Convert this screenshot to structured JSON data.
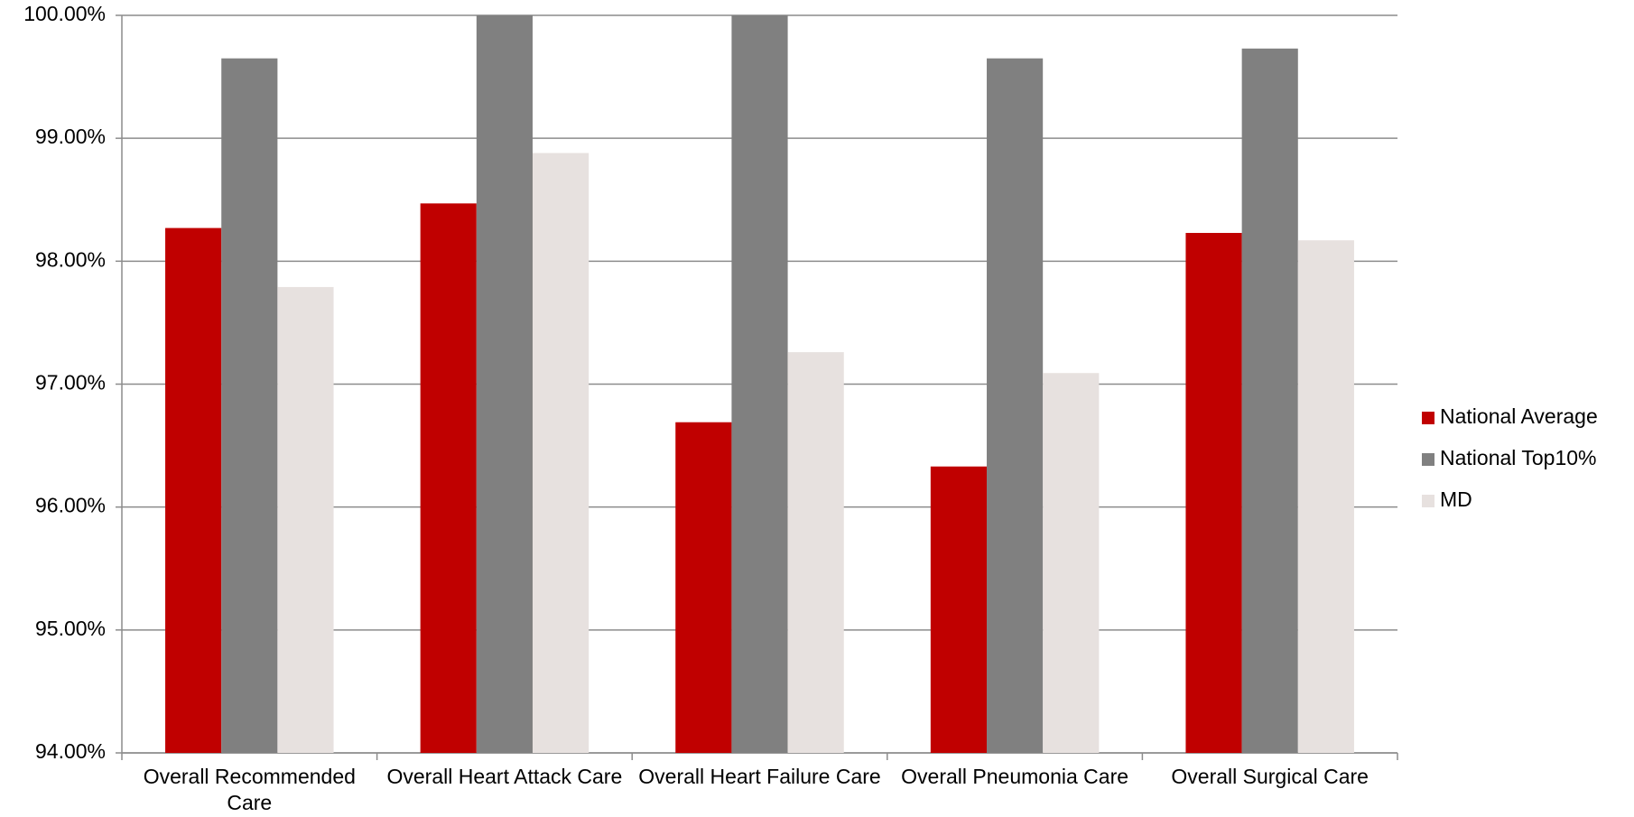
{
  "chart_data": {
    "type": "bar",
    "categories": [
      "Overall Recommended Care",
      "Overall Heart Attack Care",
      "Overall Heart Failure Care",
      "Overall Pneumonia Care",
      "Overall Surgical Care"
    ],
    "series": [
      {
        "name": "National Average",
        "color": "#c00000",
        "values": [
          98.27,
          98.47,
          96.69,
          96.33,
          98.23
        ]
      },
      {
        "name": "National Top10%",
        "color": "#808080",
        "values": [
          99.65,
          100,
          100,
          99.65,
          99.73
        ]
      },
      {
        "name": "MD",
        "color": "#e7e1df",
        "values": [
          97.79,
          98.88,
          97.26,
          97.09,
          98.17
        ]
      }
    ],
    "ylim": [
      94,
      100
    ],
    "yticks": [
      {
        "value": 94,
        "label": "94.00%"
      },
      {
        "value": 95,
        "label": "95.00%"
      },
      {
        "value": 96,
        "label": "96.00%"
      },
      {
        "value": 97,
        "label": "97.00%"
      },
      {
        "value": 98,
        "label": "98.00%"
      },
      {
        "value": 99,
        "label": "99.00%"
      },
      {
        "value": 100,
        "label": "100.00%"
      }
    ],
    "grid": true,
    "legend": "right"
  }
}
